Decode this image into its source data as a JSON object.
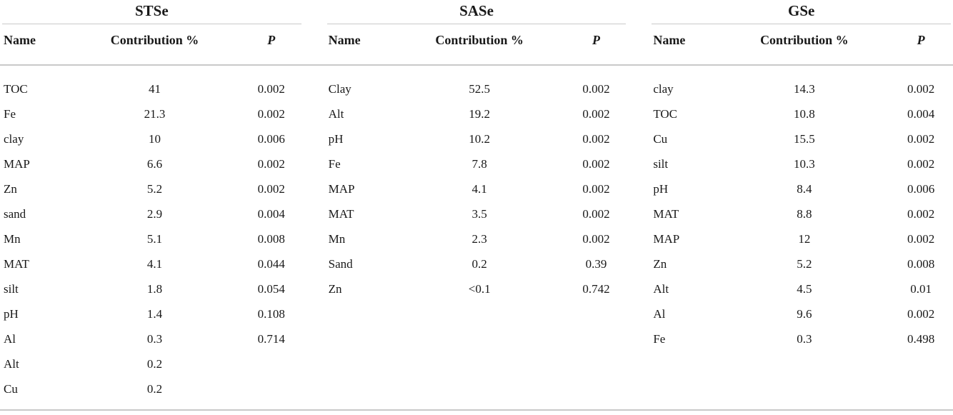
{
  "tables": [
    {
      "title": "STSe",
      "columns": {
        "name": "Name",
        "contribution": "Contribution %",
        "p": "P"
      },
      "rows": [
        {
          "name": "TOC",
          "contribution": "41",
          "p": "0.002"
        },
        {
          "name": "Fe",
          "contribution": "21.3",
          "p": "0.002"
        },
        {
          "name": "clay",
          "contribution": "10",
          "p": "0.006"
        },
        {
          "name": "MAP",
          "contribution": "6.6",
          "p": "0.002"
        },
        {
          "name": "Zn",
          "contribution": "5.2",
          "p": "0.002"
        },
        {
          "name": "sand",
          "contribution": "2.9",
          "p": "0.004"
        },
        {
          "name": "Mn",
          "contribution": "5.1",
          "p": "0.008"
        },
        {
          "name": "MAT",
          "contribution": "4.1",
          "p": "0.044"
        },
        {
          "name": "silt",
          "contribution": "1.8",
          "p": "0.054"
        },
        {
          "name": "pH",
          "contribution": "1.4",
          "p": "0.108"
        },
        {
          "name": "Al",
          "contribution": "0.3",
          "p": "0.714"
        },
        {
          "name": "Alt",
          "contribution": "0.2",
          "p": ""
        },
        {
          "name": "Cu",
          "contribution": "0.2",
          "p": ""
        }
      ]
    },
    {
      "title": "SASe",
      "columns": {
        "name": "Name",
        "contribution": "Contribution %",
        "p": "P"
      },
      "rows": [
        {
          "name": "Clay",
          "contribution": "52.5",
          "p": "0.002"
        },
        {
          "name": "Alt",
          "contribution": "19.2",
          "p": "0.002"
        },
        {
          "name": "pH",
          "contribution": "10.2",
          "p": "0.002"
        },
        {
          "name": "Fe",
          "contribution": "7.8",
          "p": "0.002"
        },
        {
          "name": "MAP",
          "contribution": "4.1",
          "p": "0.002"
        },
        {
          "name": "MAT",
          "contribution": "3.5",
          "p": "0.002"
        },
        {
          "name": "Mn",
          "contribution": "2.3",
          "p": "0.002"
        },
        {
          "name": "Sand",
          "contribution": "0.2",
          "p": "0.39"
        },
        {
          "name": "Zn",
          "contribution": "<0.1",
          "p": "0.742"
        }
      ]
    },
    {
      "title": "GSe",
      "columns": {
        "name": "Name",
        "contribution": "Contribution %",
        "p": "P"
      },
      "rows": [
        {
          "name": "clay",
          "contribution": "14.3",
          "p": "0.002"
        },
        {
          "name": "TOC",
          "contribution": "10.8",
          "p": "0.004"
        },
        {
          "name": "Cu",
          "contribution": "15.5",
          "p": "0.002"
        },
        {
          "name": "silt",
          "contribution": "10.3",
          "p": "0.002"
        },
        {
          "name": "pH",
          "contribution": "8.4",
          "p": "0.006"
        },
        {
          "name": "MAT",
          "contribution": "8.8",
          "p": "0.002"
        },
        {
          "name": "MAP",
          "contribution": "12",
          "p": "0.002"
        },
        {
          "name": "Zn",
          "contribution": "5.2",
          "p": "0.008"
        },
        {
          "name": "Alt",
          "contribution": "4.5",
          "p": "0.01"
        },
        {
          "name": "Al",
          "contribution": "9.6",
          "p": "0.002"
        },
        {
          "name": "Fe",
          "contribution": "0.3",
          "p": "0.498"
        }
      ]
    }
  ]
}
